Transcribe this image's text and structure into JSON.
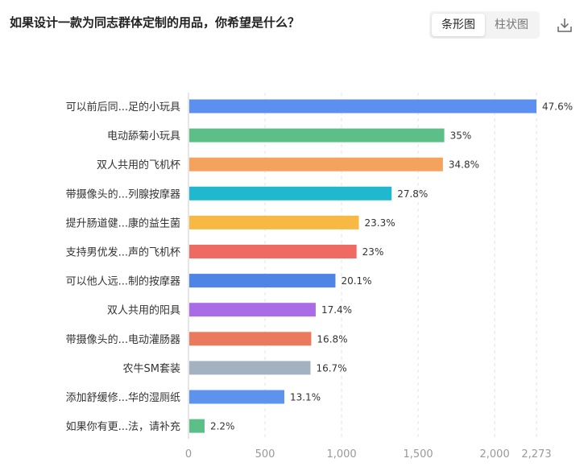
{
  "header": {
    "title": "如果设计一款为同志群体定制的用品，你希望是什么？",
    "tabs": [
      {
        "label": "条形图",
        "active": true
      },
      {
        "label": "柱状图",
        "active": false
      }
    ],
    "download_icon": "download-icon"
  },
  "chart_data": {
    "type": "bar",
    "orientation": "horizontal",
    "title": "",
    "categories": [
      "可以前后同...足的小玩具",
      "电动舔菊小玩具",
      "双人共用的飞机杯",
      "带摄像头的...列腺按摩器",
      "提升肠道健...康的益生菌",
      "支持男优发...声的飞机杯",
      "可以他人远...制的按摩器",
      "双人共用的阳具",
      "带摄像头的...电动灌肠器",
      "农牛SM套装",
      "添加舒缓修...华的湿厕纸",
      "如果你有更...法，请补充"
    ],
    "values": [
      2273,
      1671,
      1662,
      1327,
      1113,
      1098,
      960,
      831,
      802,
      797,
      626,
      105
    ],
    "labels": [
      "47.6%",
      "35%",
      "34.8%",
      "27.8%",
      "23.3%",
      "23%",
      "20.1%",
      "17.4%",
      "16.8%",
      "16.7%",
      "13.1%",
      "2.2%"
    ],
    "colors": [
      "#5b8ff0",
      "#5bbf87",
      "#f5a25d",
      "#1fb8cf",
      "#f7b844",
      "#ee6a62",
      "#4e84e6",
      "#aa6be6",
      "#e97a5c",
      "#a4b1c0",
      "#5b93ee",
      "#5bbf87"
    ],
    "xlim": [
      0,
      2273
    ],
    "xticks": [
      "0",
      "500",
      "1,000",
      "1,500",
      "2,000",
      "2,273"
    ],
    "xtick_values": [
      0,
      500,
      1000,
      1500,
      2000,
      2273
    ],
    "grid": true
  }
}
